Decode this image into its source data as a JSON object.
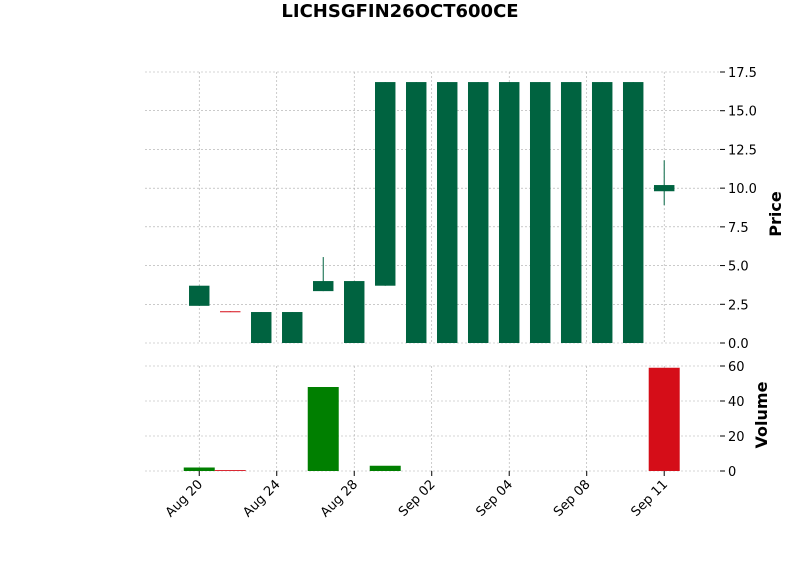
{
  "chart_data": {
    "type": "candlestick",
    "title": "LICHSGFIN26OCT600CE",
    "y_label": "Price",
    "y2_label": "Volume",
    "categories": [
      null,
      null,
      null,
      null,
      null,
      null,
      null,
      null,
      null,
      null,
      null,
      null,
      null,
      null,
      null,
      null
    ],
    "open": [
      2.4,
      2.05,
      0,
      0,
      3.35,
      0,
      3.7,
      0,
      0,
      0,
      0,
      0,
      0,
      0,
      0,
      9.8
    ],
    "high": [
      3.7,
      2.05,
      2.0,
      2.0,
      5.55,
      4.0,
      16.85,
      16.85,
      16.85,
      16.85,
      16.85,
      16.85,
      16.85,
      16.85,
      16.85,
      11.8
    ],
    "low": [
      2.4,
      2.0,
      0,
      0,
      3.35,
      0,
      3.7,
      0,
      0,
      0,
      0,
      0,
      0,
      0,
      0,
      8.9
    ],
    "close": [
      3.7,
      2.0,
      2.0,
      2.0,
      4.0,
      4.0,
      16.85,
      16.85,
      16.85,
      16.85,
      16.85,
      16.85,
      16.85,
      16.85,
      16.85,
      10.2
    ],
    "volume": [
      2,
      0.5,
      0,
      0,
      48,
      0,
      3,
      0,
      0,
      0,
      0,
      0,
      0,
      0,
      0,
      59
    ],
    "up_color": "#006340",
    "down_color": "#d50d18",
    "volume_up_color": "#007f00",
    "volume_down_color": "#d50d18",
    "xlim": [
      -1.75,
      16.8
    ],
    "xticks": [
      {
        "value": 0,
        "label": "Aug 20"
      },
      {
        "value": 2.5,
        "label": "Aug 24"
      },
      {
        "value": 5,
        "label": "Aug 28"
      },
      {
        "value": 7.5,
        "label": "Sep 02"
      },
      {
        "value": 10,
        "label": "Sep 04"
      },
      {
        "value": 12.5,
        "label": "Sep 08"
      },
      {
        "value": 15,
        "label": "Sep 11"
      }
    ],
    "ylim": [
      0,
      17.5
    ],
    "yticks": [
      {
        "value": 0,
        "label": "0.0"
      },
      {
        "value": 2.5,
        "label": "2.5"
      },
      {
        "value": 5,
        "label": "5.0"
      },
      {
        "value": 7.5,
        "label": "7.5"
      },
      {
        "value": 10,
        "label": "10.0"
      },
      {
        "value": 12.5,
        "label": "12.5"
      },
      {
        "value": 15,
        "label": "15.0"
      },
      {
        "value": 17.5,
        "label": "17.5"
      }
    ],
    "y2lim": [
      0,
      60
    ],
    "y2ticks": [
      0,
      20,
      40,
      60
    ],
    "grid": true
  }
}
